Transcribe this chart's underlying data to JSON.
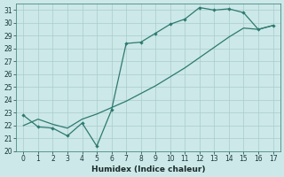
{
  "xlabel": "Humidex (Indice chaleur)",
  "x": [
    0,
    1,
    2,
    3,
    4,
    5,
    6,
    7,
    8,
    9,
    10,
    11,
    12,
    13,
    14,
    15,
    16,
    17
  ],
  "y_jagged": [
    22.8,
    21.9,
    21.8,
    21.2,
    22.2,
    20.4,
    23.2,
    28.4,
    28.5,
    29.2,
    29.9,
    30.3,
    31.2,
    31.0,
    31.1,
    30.8,
    29.5,
    29.8
  ],
  "y_smooth": [
    22.0,
    22.5,
    22.1,
    21.8,
    22.5,
    22.9,
    23.4,
    23.9,
    24.5,
    25.1,
    25.8,
    26.5,
    27.3,
    28.1,
    28.9,
    29.6,
    29.5,
    29.8
  ],
  "line_color": "#2d7a6e",
  "bg_color": "#cce8e8",
  "grid_color": "#b8d8d8",
  "ylim": [
    20,
    31.5
  ],
  "xlim": [
    -0.5,
    17.5
  ],
  "yticks": [
    20,
    21,
    22,
    23,
    24,
    25,
    26,
    27,
    28,
    29,
    30,
    31
  ],
  "xticks": [
    0,
    1,
    2,
    3,
    4,
    5,
    6,
    7,
    8,
    9,
    10,
    11,
    12,
    13,
    14,
    15,
    16,
    17
  ],
  "tick_fontsize": 5.5,
  "xlabel_fontsize": 6.5
}
